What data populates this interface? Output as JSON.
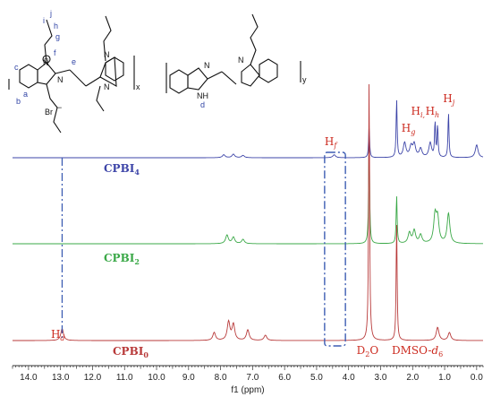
{
  "chart_data": {
    "type": "line",
    "title": "",
    "xlabel": "f1 (ppm)",
    "ylabel": "",
    "xlim": [
      14.5,
      -0.2
    ],
    "x_reversed": true,
    "x_ticks": [
      "14.0",
      "13.0",
      "12.0",
      "11.0",
      "10.0",
      "9.0",
      "8.0",
      "7.0",
      "6.0",
      "5.0",
      "4.0",
      "3.0",
      "2.0",
      "1.0",
      "0.0"
    ],
    "grid": false,
    "series": [
      {
        "name": "CPBI4",
        "label_main": "CPBI",
        "label_sub": "4",
        "color": "#3d45a8",
        "peaks": [
          {
            "ppm": 7.9,
            "h": 0.05
          },
          {
            "ppm": 7.6,
            "h": 0.06
          },
          {
            "ppm": 7.3,
            "h": 0.04
          },
          {
            "ppm": 4.45,
            "h": 0.05
          },
          {
            "ppm": 3.36,
            "h": 0.55
          },
          {
            "ppm": 2.5,
            "h": 1.0
          },
          {
            "ppm": 2.25,
            "h": 0.25
          },
          {
            "ppm": 2.05,
            "h": 0.18
          },
          {
            "ppm": 1.95,
            "h": 0.22
          },
          {
            "ppm": 1.75,
            "h": 0.15
          },
          {
            "ppm": 1.45,
            "h": 0.25
          },
          {
            "ppm": 1.3,
            "h": 0.6
          },
          {
            "ppm": 1.22,
            "h": 0.55
          },
          {
            "ppm": 0.88,
            "h": 0.78
          },
          {
            "ppm": 0.0,
            "h": 0.22
          }
        ]
      },
      {
        "name": "CPBI2",
        "label_main": "CPBI",
        "label_sub": "2",
        "color": "#3aa847",
        "peaks": [
          {
            "ppm": 7.8,
            "h": 0.08
          },
          {
            "ppm": 7.6,
            "h": 0.06
          },
          {
            "ppm": 7.3,
            "h": 0.04
          },
          {
            "ppm": 3.36,
            "h": 1.0
          },
          {
            "ppm": 2.5,
            "h": 0.45
          },
          {
            "ppm": 2.1,
            "h": 0.1
          },
          {
            "ppm": 1.95,
            "h": 0.12
          },
          {
            "ppm": 1.75,
            "h": 0.08
          },
          {
            "ppm": 1.3,
            "h": 0.25
          },
          {
            "ppm": 1.22,
            "h": 0.22
          },
          {
            "ppm": 0.88,
            "h": 0.28
          }
        ]
      },
      {
        "name": "CPBI0",
        "label_main": "CPBI",
        "label_sub": "0",
        "color": "#b83a3a",
        "peaks": [
          {
            "ppm": 12.95,
            "h": 0.045
          },
          {
            "ppm": 8.2,
            "h": 0.03
          },
          {
            "ppm": 7.75,
            "h": 0.07
          },
          {
            "ppm": 7.6,
            "h": 0.06
          },
          {
            "ppm": 7.15,
            "h": 0.04
          },
          {
            "ppm": 6.6,
            "h": 0.02
          },
          {
            "ppm": 3.36,
            "h": 1.0
          },
          {
            "ppm": 2.5,
            "h": 0.45
          },
          {
            "ppm": 1.22,
            "h": 0.05
          },
          {
            "ppm": 0.85,
            "h": 0.03
          }
        ]
      }
    ],
    "annotations": [
      {
        "id": "hd",
        "text": "H",
        "sub": "d"
      },
      {
        "id": "hf",
        "text": "H",
        "sub": "f"
      },
      {
        "id": "hg",
        "text": "H",
        "sub": "g"
      },
      {
        "id": "hi",
        "text": "H",
        "sub": "i,"
      },
      {
        "id": "hh",
        "text": "H",
        "sub": "h"
      },
      {
        "id": "hj",
        "text": "H",
        "sub": "j"
      },
      {
        "id": "d2o",
        "text": "D",
        "sub": "2",
        "tail": "O"
      },
      {
        "id": "dmso",
        "text": "DMSO-",
        "tail_italic": "d",
        "sub": "6"
      }
    ]
  },
  "structure": {
    "atoms": [
      "N",
      "N",
      "N",
      "N",
      "N",
      "N",
      "NH"
    ],
    "charge": "+",
    "counterion": "Br",
    "counterion_charge": "−",
    "position_labels": [
      "a",
      "b",
      "c",
      "d",
      "e",
      "f",
      "g",
      "h",
      "i",
      "j"
    ],
    "repeat_subscripts": [
      "x",
      "y"
    ]
  }
}
